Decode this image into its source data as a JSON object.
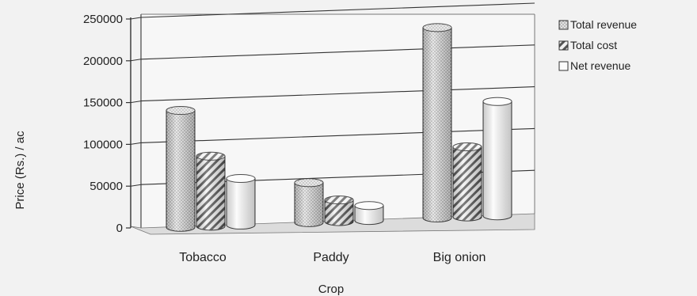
{
  "chart_data": {
    "type": "bar",
    "title": "",
    "xlabel": "Crop",
    "ylabel": "Price (Rs.) / ac",
    "categories": [
      "Tobacco",
      "Paddy",
      "Big onion"
    ],
    "series": [
      {
        "name": "Total revenue",
        "values": [
          137000,
          45000,
          225000
        ],
        "pattern": "dotted",
        "color": "#d8d8d8"
      },
      {
        "name": "Total cost",
        "values": [
          81000,
          23000,
          81000
        ],
        "pattern": "hatched",
        "color": "#e6e6e6"
      },
      {
        "name": "Net revenue",
        "values": [
          53000,
          15000,
          134000
        ],
        "pattern": "plain",
        "color": "#fafafa"
      }
    ],
    "ylim": [
      0,
      250000
    ],
    "yticks": [
      "0",
      "50000",
      "100000",
      "150000",
      "200000",
      "250000"
    ],
    "grid": true,
    "legend_position": "right",
    "style": "3d-cylinder"
  }
}
